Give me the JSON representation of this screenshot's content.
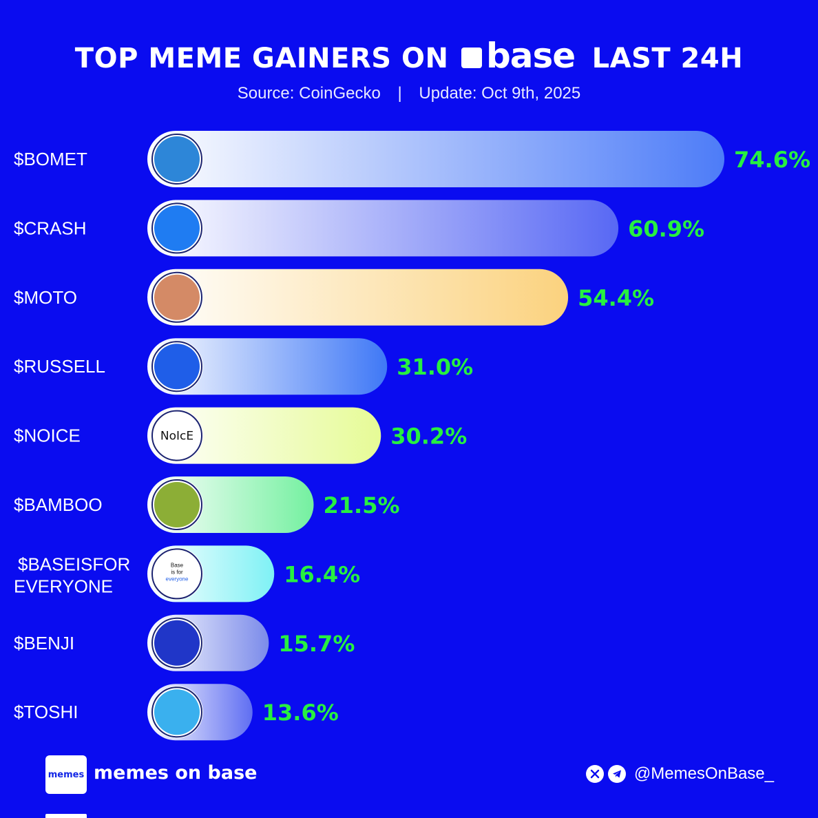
{
  "header": {
    "title_prefix": "TOP MEME GAINERS ON",
    "brand": "base",
    "title_suffix": "LAST 24H",
    "source": "Source: CoinGecko",
    "separator": "|",
    "update": "Update: Oct 9th, 2025"
  },
  "chart_data": {
    "type": "bar",
    "orientation": "horizontal",
    "title": "TOP MEME GAINERS ON base LAST 24H",
    "categories": [
      "$BOMET",
      "$CRASH",
      "$MOTO",
      "$RUSSELL",
      "$NOICE",
      "$BAMBOO",
      "$BASEISFOR EVERYONE",
      "$BENJI",
      "$TOSHI"
    ],
    "values": [
      74.6,
      60.9,
      54.4,
      31.0,
      30.2,
      21.5,
      16.4,
      15.7,
      13.6
    ],
    "value_labels": [
      "74.6%",
      "60.9%",
      "54.4%",
      "31.0%",
      "30.2%",
      "21.5%",
      "16.4%",
      "15.7%",
      "13.6%"
    ],
    "unit": "%",
    "xlim": [
      0,
      74.6
    ],
    "grid": false,
    "legend": "none",
    "logo_text": {
      "$NOICE": "NoIcE",
      "$BASEISFOR EVERYONE": [
        "Base",
        "is for",
        "everyone"
      ]
    },
    "colors": {
      "value_label": "#27f040",
      "bar_gradients": [
        [
          "#ffffff",
          "#4d7cf8"
        ],
        [
          "#ffffff",
          "#5868f4"
        ],
        [
          "#ffffff",
          "#fbd27e"
        ],
        [
          "#ffffff",
          "#3f78f6"
        ],
        [
          "#ffffff",
          "#e6fb96"
        ],
        [
          "#ffffff",
          "#74f0a0"
        ],
        [
          "#ffffff",
          "#7ef1f5"
        ],
        [
          "#ffffff",
          "#7b8bea"
        ],
        [
          "#ffffff",
          "#5f6ef2"
        ]
      ],
      "icon_fills": [
        "#2d86d8",
        "#1f7cf2",
        "#d48a66",
        "#1f5ee8",
        "#ffffff",
        "#8cae36",
        "#ffffff",
        "#2036c8",
        "#3ab0ee"
      ]
    }
  },
  "footer": {
    "logo_text": "memes",
    "brand": "memes on base",
    "handle": "@MemesOnBase_",
    "x_icon": "x-icon",
    "telegram_icon": "telegram-icon"
  },
  "colors": {
    "background": "#0a0cf0",
    "text": "#ffffff"
  }
}
